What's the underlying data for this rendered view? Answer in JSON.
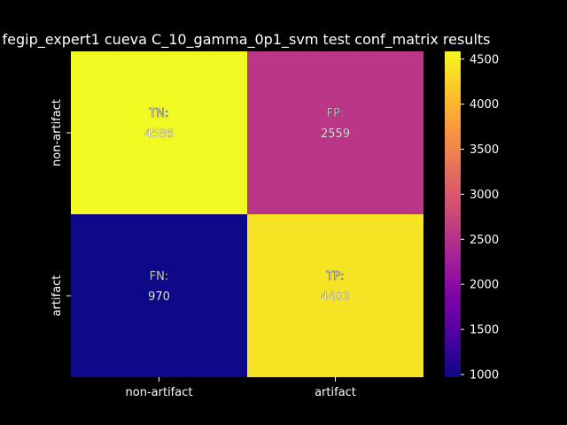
{
  "chart_data": {
    "type": "heatmap",
    "title": "fegip_expert1 cueva C_10_gamma_0p1_svm test conf_matrix results",
    "xlabel": "",
    "ylabel": "",
    "x_categories": [
      "non-artifact",
      "artifact"
    ],
    "y_categories": [
      "non-artifact",
      "artifact"
    ],
    "cells": [
      {
        "row": 0,
        "col": 0,
        "label": "TN:",
        "value": 4586
      },
      {
        "row": 0,
        "col": 1,
        "label": "FP:",
        "value": 2559
      },
      {
        "row": 1,
        "col": 0,
        "label": "FN:",
        "value": 970
      },
      {
        "row": 1,
        "col": 1,
        "label": "TP:",
        "value": 4403
      }
    ],
    "colormap": "plasma",
    "colorbar": {
      "vmin": 970,
      "vmax": 4586,
      "ticks": [
        1000,
        1500,
        2000,
        2500,
        3000,
        3500,
        4000,
        4500
      ]
    },
    "colors": {
      "background": "#000000",
      "text": "#ffffff"
    }
  }
}
